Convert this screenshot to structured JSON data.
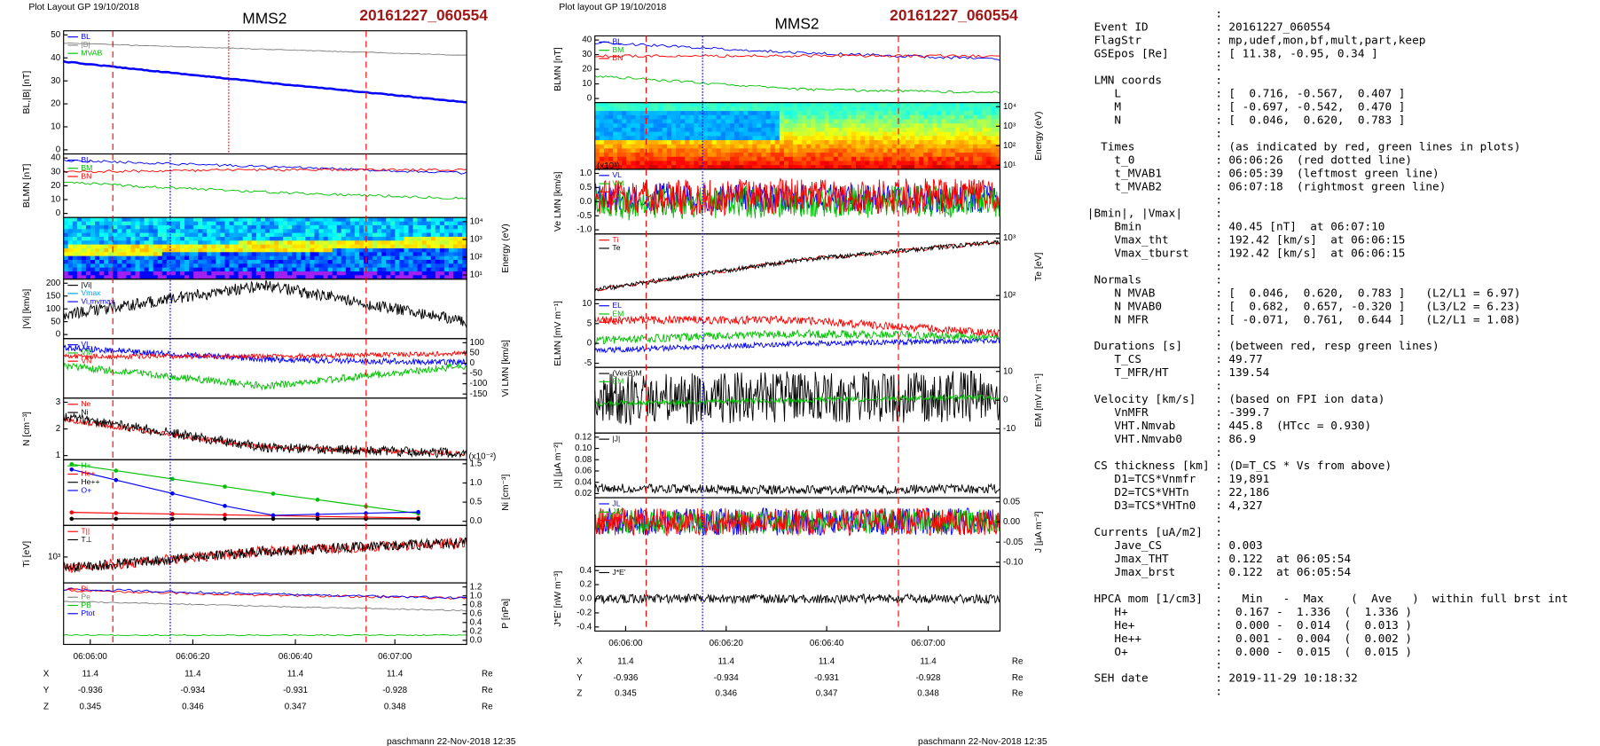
{
  "plots": [
    {
      "header": "Plot Layout GP 19/10/2018",
      "title": "MMS2",
      "event": "20161227_060554",
      "panels": [
        {
          "ylabel": "BL,|B| [nT]",
          "yticks": [
            "50",
            "40",
            "30",
            "20",
            "10",
            "0"
          ],
          "legend": [
            {
              "name": "BL",
              "color": "#0000ff"
            },
            {
              "name": "|B|",
              "color": "#808080"
            },
            {
              "name": "MVAB",
              "color": "#00c000"
            }
          ]
        },
        {
          "ylabel": "BLMN [nT]",
          "yticks": [
            "40",
            "30",
            "20",
            "10",
            "0"
          ],
          "legend": [
            {
              "name": "BL",
              "color": "#0000ff"
            },
            {
              "name": "BM",
              "color": "#00c000"
            },
            {
              "name": "BN",
              "color": "#ff0000"
            }
          ]
        },
        {
          "y2label": "Energy (eV)",
          "y2ticks": [
            "10⁴",
            "10³",
            "10²",
            "10¹"
          ]
        },
        {
          "ylabel": "|Vi| [km/s]",
          "yticks": [
            "200",
            "150",
            "100",
            "50",
            "0"
          ],
          "legend": [
            {
              "name": "|Vi|",
              "color": "#000000"
            },
            {
              "name": "Vmax",
              "color": "#00a0ff"
            },
            {
              "name": "Vi,mvmax",
              "color": "#0000ff"
            }
          ]
        },
        {
          "y2label": "Vi LMN [km/s]",
          "y2ticks": [
            "100",
            "50",
            "0",
            "-50",
            "-100",
            "-150"
          ],
          "legend": [
            {
              "name": "VL",
              "color": "#0000ff"
            },
            {
              "name": "VM",
              "color": "#00c000"
            },
            {
              "name": "VN",
              "color": "#ff0000"
            }
          ]
        },
        {
          "ylabel": "N [cm⁻³]",
          "yticks": [
            "3",
            "2",
            "1"
          ],
          "legend": [
            {
              "name": "Ne",
              "color": "#ff0000"
            },
            {
              "name": "Ni",
              "color": "#000000"
            }
          ]
        },
        {
          "y2label": "Ni [cm⁻³]",
          "y2ticks": [
            "1.5",
            "1.0",
            "0.5",
            "0.0"
          ],
          "scale_note": "(x10⁻²)",
          "legend": [
            {
              "name": "H+",
              "color": "#00c000"
            },
            {
              "name": "He+",
              "color": "#ff0000"
            },
            {
              "name": "He++",
              "color": "#000000"
            },
            {
              "name": "O+",
              "color": "#0000ff"
            }
          ]
        },
        {
          "ylabel": "Ti [eV]",
          "yticks": [
            "10³"
          ],
          "legend": [
            {
              "name": "T||",
              "color": "#ff0000"
            },
            {
              "name": "T⊥",
              "color": "#000000"
            }
          ]
        },
        {
          "y2label": "P [nPa]",
          "y2ticks": [
            "1.2",
            "1.0",
            "0.8",
            "0.6",
            "0.4",
            "0.2",
            "0.0"
          ],
          "legend": [
            {
              "name": "Pi",
              "color": "#ff0000"
            },
            {
              "name": "Pe",
              "color": "#808080"
            },
            {
              "name": "PB",
              "color": "#00c000"
            },
            {
              "name": "Ptot",
              "color": "#0000ff"
            }
          ]
        }
      ],
      "time_ticks": [
        "06:06:00",
        "06:06:20",
        "06:06:40",
        "06:07:00"
      ],
      "positions": [
        {
          "label": "X",
          "values": [
            "11.4",
            "11.4",
            "11.4",
            "11.4"
          ],
          "unit": "Re"
        },
        {
          "label": "Y",
          "values": [
            "-0.936",
            "-0.934",
            "-0.931",
            "-0.928"
          ],
          "unit": "Re"
        },
        {
          "label": "Z",
          "values": [
            "0.345",
            "0.346",
            "0.347",
            "0.348"
          ],
          "unit": "Re"
        }
      ],
      "footer": "paschmann 22-Nov-2018 12:35"
    },
    {
      "header": "Plot layout GP 19/10/2018",
      "title": "MMS2",
      "event": "20161227_060554",
      "panels": [
        {
          "ylabel": "BLMN [nT]",
          "yticks": [
            "40",
            "30",
            "20",
            "10",
            "0"
          ],
          "legend": [
            {
              "name": "BL",
              "color": "#0000ff"
            },
            {
              "name": "BM",
              "color": "#00c000"
            },
            {
              "name": "BN",
              "color": "#ff0000"
            }
          ]
        },
        {
          "y2label": "Energy (eV)",
          "y2ticks": [
            "10⁴",
            "10³",
            "10²",
            "10¹"
          ]
        },
        {
          "ylabel": "Ve LMN [km/s]",
          "yticks": [
            "1.0",
            "0.5",
            "0.0",
            "-0.5",
            "-1.0"
          ],
          "scale_note": "(x10³)",
          "legend": [
            {
              "name": "VL",
              "color": "#0000ff"
            },
            {
              "name": "VM",
              "color": "#00c000"
            },
            {
              "name": "VN",
              "color": "#ff0000"
            }
          ]
        },
        {
          "y2label": "Te [eV]",
          "y2ticks": [
            "10³",
            "10²"
          ],
          "legend": [
            {
              "name": "Ti",
              "color": "#ff0000"
            },
            {
              "name": "Te",
              "color": "#000000"
            }
          ]
        },
        {
          "ylabel": "ELMN [mV m⁻¹]",
          "yticks": [
            "10",
            "5",
            "0",
            "-5"
          ],
          "legend": [
            {
              "name": "EL",
              "color": "#0000ff"
            },
            {
              "name": "EM",
              "color": "#00c000"
            },
            {
              "name": "EN",
              "color": "#ff0000"
            }
          ]
        },
        {
          "y2label": "EM [mV m⁻¹]",
          "y2ticks": [
            "10",
            "0",
            "-10"
          ],
          "legend": [
            {
              "name": "(VexB)M",
              "color": "#000000"
            },
            {
              "name": "EM",
              "color": "#00c000"
            }
          ]
        },
        {
          "ylabel": "|J| [μA m⁻²]",
          "yticks": [
            "0.12",
            "0.10",
            "0.08",
            "0.06",
            "0.04",
            "0.02"
          ],
          "legend": [
            {
              "name": "|J|",
              "color": "#000000"
            }
          ]
        },
        {
          "y2label": "J [μA m⁻²]",
          "y2ticks": [
            "0.05",
            "0.00",
            "-0.05",
            "-0.10"
          ],
          "legend": [
            {
              "name": "JL",
              "color": "#0000ff"
            },
            {
              "name": "JM",
              "color": "#00c000"
            },
            {
              "name": "JN",
              "color": "#ff0000"
            }
          ]
        },
        {
          "ylabel": "J*E' [nW m⁻³]",
          "yticks": [
            "0.4",
            "0.2",
            "0.0",
            "-0.2",
            "-0.4"
          ],
          "legend": [
            {
              "name": "J*E'",
              "color": "#000000"
            }
          ]
        }
      ],
      "time_ticks": [
        "06:06:00",
        "06:06:20",
        "06:06:40",
        "06:07:00"
      ],
      "positions": [
        {
          "label": "X",
          "values": [
            "11.4",
            "11.4",
            "11.4",
            "11.4"
          ],
          "unit": "Re"
        },
        {
          "label": "Y",
          "values": [
            "-0.936",
            "-0.934",
            "-0.931",
            "-0.928"
          ],
          "unit": "Re"
        },
        {
          "label": "Z",
          "values": [
            "0.345",
            "0.346",
            "0.347",
            "0.348"
          ],
          "unit": "Re"
        }
      ],
      "footer": "paschmann 22-Nov-2018 12:35"
    }
  ],
  "info": {
    "rows": [
      [],
      [
        " Event ID",
        "20161227_060554"
      ],
      [
        " FlagStr",
        "mp,udef,mon,bf,mult,part,keep"
      ],
      [
        " GSEpos [Re]",
        "[ 11.38, -0.95, 0.34 ]"
      ],
      [],
      [
        " LMN coords"
      ],
      [
        "    L",
        "[  0.716, -0.567,  0.407 ]"
      ],
      [
        "    M",
        "[ -0.697, -0.542,  0.470 ]"
      ],
      [
        "    N",
        "[  0.046,  0.620,  0.783 ]"
      ],
      [],
      [
        "  Times",
        "(as indicated by red, green lines in plots)"
      ],
      [
        "    t_0",
        "06:06:26  (red dotted line)"
      ],
      [
        "    t_MVAB1",
        "06:05:39  (leftmost green line)"
      ],
      [
        "    t_MVAB2",
        "06:07:18  (rightmost green line)"
      ],
      [],
      [
        "|Bmin|, |Vmax|"
      ],
      [
        "    Bmin",
        "40.45 [nT]  at 06:07:10"
      ],
      [
        "    Vmax_tht",
        "192.42 [km/s]  at 06:06:15"
      ],
      [
        "    Vmax_tburst",
        "192.42 [km/s]  at 06:06:15"
      ],
      [],
      [
        " Normals"
      ],
      [
        "    N MVAB",
        "[  0.046,  0.620,  0.783 ]   (L2/L1 = 6.97)"
      ],
      [
        "    N MVAB0",
        "[  0.682,  0.657, -0.320 ]   (L3/L2 = 6.23)"
      ],
      [
        "    N MFR",
        "[ -0.071,  0.761,  0.644 ]   (L2/L1 = 1.08)"
      ],
      [],
      [
        " Durations [s]",
        "(between red, resp green lines)"
      ],
      [
        "    T_CS",
        "49.77"
      ],
      [
        "    T_MFR/HT",
        "139.54"
      ],
      [],
      [
        " Velocity [km/s]",
        "(based on FPI ion data)"
      ],
      [
        "    VnMFR",
        "-399.7"
      ],
      [
        "    VHT.Nmvab",
        "445.8  (HTcc = 0.930)"
      ],
      [
        "    VHT.Nmvab0",
        "86.9"
      ],
      [],
      [
        " CS thickness [km]",
        "(D=T_CS * Vs from above)"
      ],
      [
        "    D1=TCS*Vnmfr",
        "19,891"
      ],
      [
        "    D2=TCS*VHTn",
        "22,186"
      ],
      [
        "    D3=TCS*VHTn0",
        "4,327"
      ],
      [],
      [
        " Currents [uA/m2]"
      ],
      [
        "    Jave_CS",
        "0.003"
      ],
      [
        "    Jmax_THT",
        "0.122  at 06:05:54"
      ],
      [
        "    Jmax_brst",
        "0.122  at 06:05:54"
      ],
      [],
      [
        " HPCA mom [1/cm3]",
        "  Min   -  Max    (  Ave   )  within full brst int"
      ],
      [
        "    H+",
        " 0.167 -  1.336  (  1.336 )"
      ],
      [
        "    He+",
        " 0.000 -  0.014  (  0.013 )"
      ],
      [
        "    He++",
        " 0.001 -  0.004  (  0.002 )"
      ],
      [
        "    O+",
        " 0.000 -  0.015  (  0.015 )"
      ],
      [],
      [
        " SEH date",
        "2019-11-29 10:18:32"
      ],
      []
    ]
  }
}
